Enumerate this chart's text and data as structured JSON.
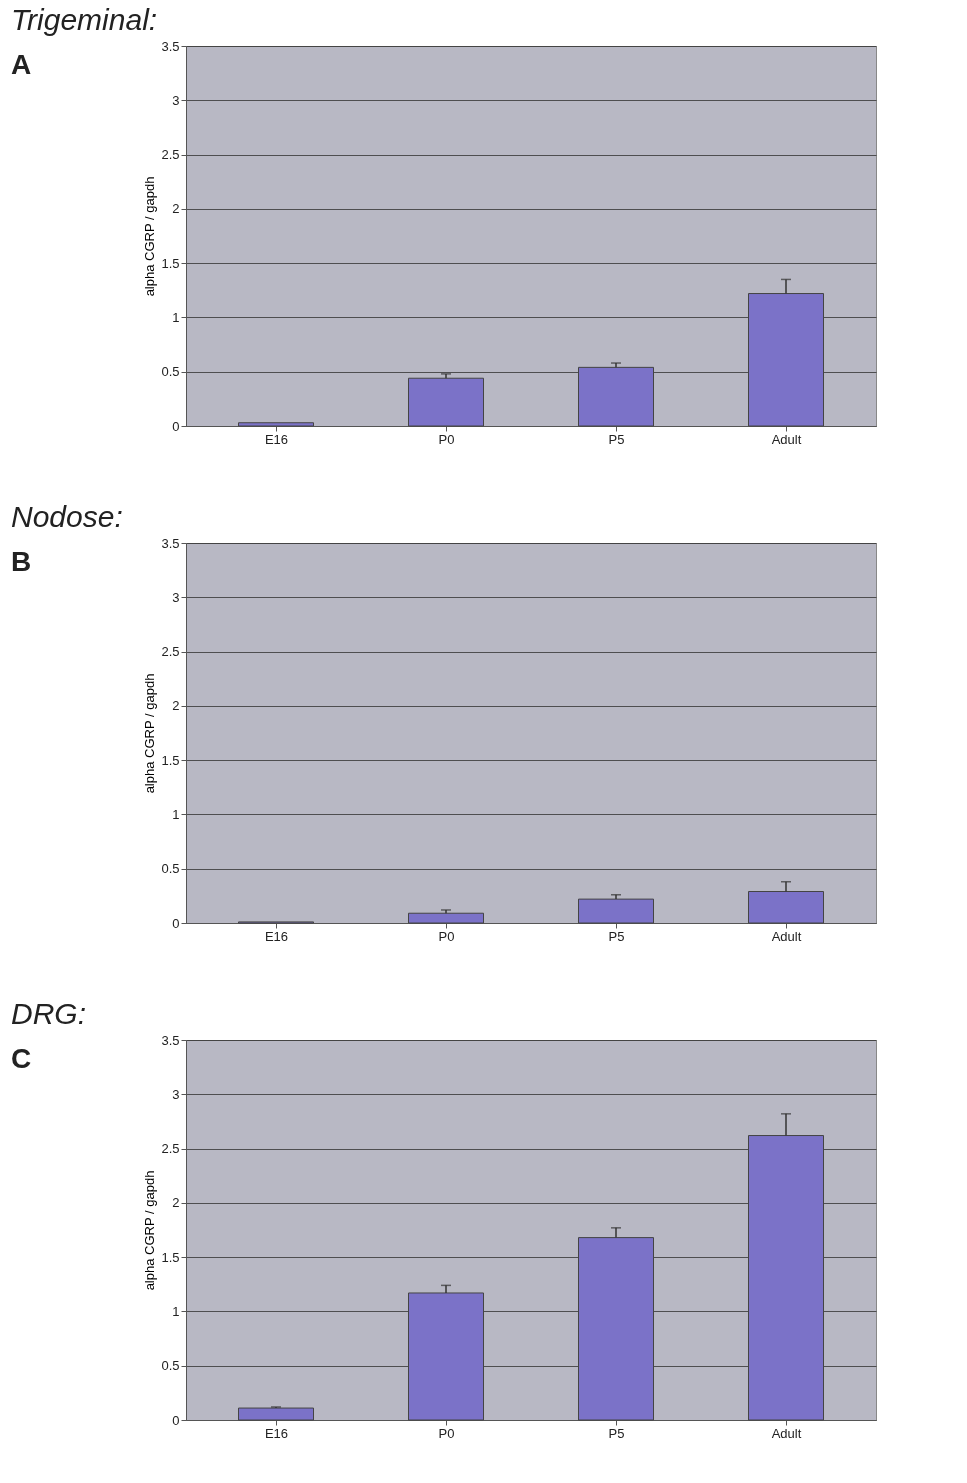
{
  "chart_data": [
    {
      "type": "bar",
      "title": "Trigeminal:",
      "ylabel": "alpha CGRP / gapdh",
      "annotations": [
        "A"
      ],
      "categories": [
        "E16",
        "P0",
        "P5",
        "Adult"
      ],
      "series": [
        {
          "color": "#7b72c8",
          "values": [
            0.03,
            0.44,
            0.54,
            1.22
          ],
          "errors": [
            null,
            [
              0.44,
              0.48
            ],
            [
              0.54,
              0.58
            ],
            [
              1.22,
              1.35
            ]
          ]
        }
      ],
      "ylim": [
        0,
        3.5
      ],
      "yticks": [
        0,
        0.5,
        1,
        1.5,
        2,
        2.5,
        3,
        3.5
      ],
      "grid": "y"
    },
    {
      "type": "bar",
      "title": "Nodose:",
      "ylabel": "alpha CGRP / gapdh",
      "annotations": [
        "B"
      ],
      "categories": [
        "E16",
        "P0",
        "P5",
        "Adult"
      ],
      "series": [
        {
          "color": "#7b72c8",
          "values": [
            0.01,
            0.09,
            0.22,
            0.29
          ],
          "errors": [
            null,
            [
              0.09,
              0.12
            ],
            [
              0.22,
              0.26
            ],
            [
              0.29,
              0.38
            ]
          ]
        }
      ],
      "ylim": [
        0,
        3.5
      ],
      "yticks": [
        0,
        0.5,
        1,
        1.5,
        2,
        2.5,
        3,
        3.5
      ],
      "grid": "y"
    },
    {
      "type": "bar",
      "title": "DRG:",
      "ylabel": "alpha CGRP / gapdh",
      "annotations": [
        "C"
      ],
      "categories": [
        "E16",
        "P0",
        "P5",
        "Adult"
      ],
      "series": [
        {
          "color": "#7b72c8",
          "values": [
            0.11,
            1.17,
            1.68,
            2.62
          ],
          "errors": [
            [
              0.11,
              0.12
            ],
            [
              1.17,
              1.24
            ],
            [
              1.68,
              1.77
            ],
            [
              2.62,
              2.82
            ]
          ]
        }
      ],
      "ylim": [
        0,
        3.5
      ],
      "yticks": [
        0,
        0.5,
        1,
        1.5,
        2,
        2.5,
        3,
        3.5
      ],
      "grid": "y"
    }
  ]
}
